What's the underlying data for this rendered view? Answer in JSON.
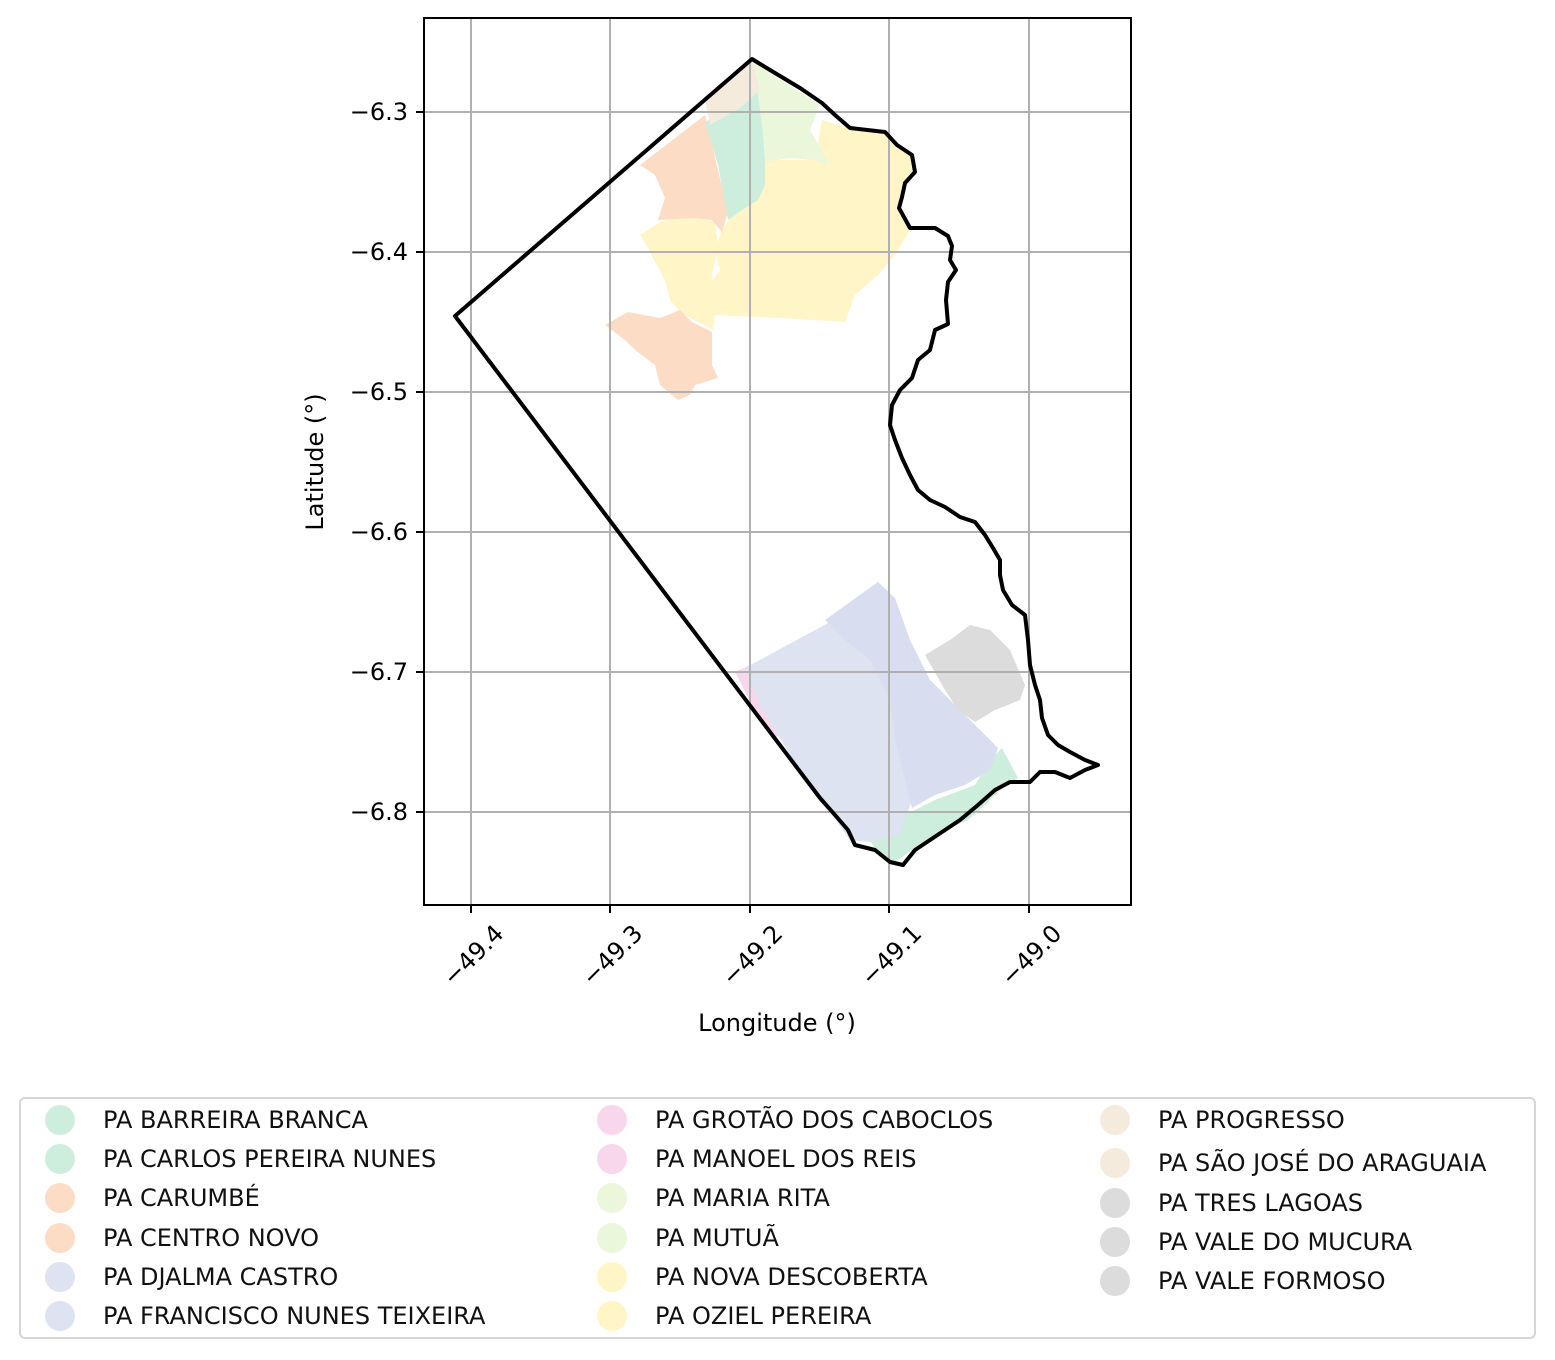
{
  "map": {
    "xlabel": "Longitude (°)",
    "ylabel": "Latitude (°)",
    "x_ticks": [
      "−49.4",
      "−49.3",
      "−49.2",
      "−49.1",
      "−49.0"
    ],
    "y_ticks": [
      "−6.3",
      "−6.4",
      "−6.5",
      "−6.6",
      "−6.7",
      "−6.8"
    ],
    "xlim": [
      -49.435,
      -48.928
    ],
    "ylim": [
      -6.868,
      -6.235
    ],
    "grid": true,
    "boundary_color": "#000000"
  },
  "legend": {
    "items": [
      {
        "label": "PA BARREIRA BRANCA",
        "color": "#cdeedd"
      },
      {
        "label": "PA CARLOS PEREIRA NUNES",
        "color": "#cdeedd"
      },
      {
        "label": "PA CARUMBÉ",
        "color": "#fddcc6"
      },
      {
        "label": "PA CENTRO NOVO",
        "color": "#fddcc6"
      },
      {
        "label": "PA DJALMA CASTRO",
        "color": "#dde3f1"
      },
      {
        "label": "PA FRANCISCO NUNES TEIXEIRA",
        "color": "#dde3f1"
      },
      {
        "label": "PA GROTÃO DOS CABOCLOS",
        "color": "#f8d6eb"
      },
      {
        "label": "PA MANOEL DOS REIS",
        "color": "#f8d6eb"
      },
      {
        "label": "PA MARIA RITA",
        "color": "#eaf7db"
      },
      {
        "label": "PA MUTUÃ",
        "color": "#eaf7db"
      },
      {
        "label": "PA NOVA DESCOBERTA",
        "color": "#fff5c6"
      },
      {
        "label": "PA OZIEL PEREIRA",
        "color": "#fff5c6"
      },
      {
        "label": "PA PROGRESSO",
        "color": "#f5ebdc"
      },
      {
        "label": "PA SÃO JOSÉ DO ARAGUAIA",
        "color": "#f5ebdc"
      },
      {
        "label": "PA TRES LAGOAS",
        "color": "#dcdcdc"
      },
      {
        "label": "PA VALE DO MUCURA",
        "color": "#dcdcdc"
      },
      {
        "label": "PA VALE FORMOSO",
        "color": "#dcdcdc"
      }
    ]
  }
}
